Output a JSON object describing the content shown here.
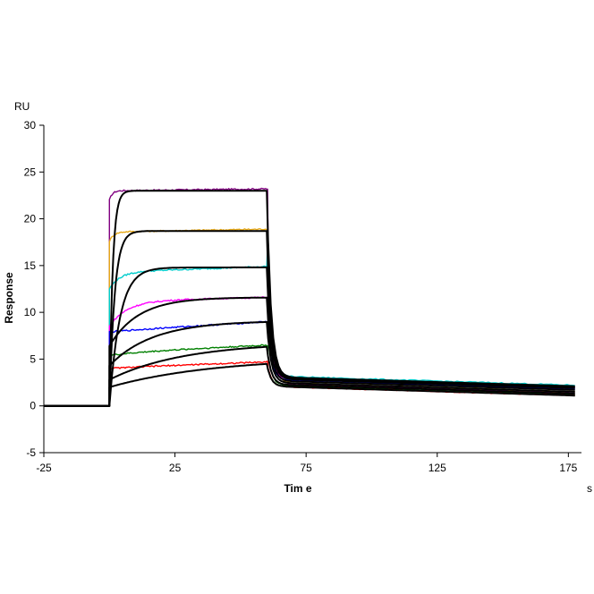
{
  "chart_data": {
    "type": "line",
    "title": "",
    "xlabel": "Tim e",
    "ylabel": "Response",
    "x_unit": "s",
    "y_unit": "RU",
    "xlim": [
      -25,
      180
    ],
    "ylim": [
      -5,
      30
    ],
    "x_ticks": [
      -25,
      25,
      75,
      125,
      175
    ],
    "y_ticks": [
      -5,
      0,
      5,
      10,
      15,
      20,
      25,
      30
    ],
    "x_tick_labels": [
      "-25",
      "25",
      "75",
      "125",
      "175"
    ],
    "y_tick_labels": [
      "-5",
      "0",
      "5",
      "10",
      "15",
      "20",
      "25",
      "30"
    ],
    "association_start": 0,
    "dissociation_start": 60,
    "end_time": 178,
    "grid": false,
    "legend": "none",
    "series": [
      {
        "name": "curve-1",
        "color": "#800080",
        "plateau": 23.2,
        "initial": 22.0,
        "kon": 0.9,
        "drift": 0.2,
        "end": 1.4,
        "spike": 2.0
      },
      {
        "name": "curve-2",
        "color": "#e6a817",
        "plateau": 18.9,
        "initial": 17.6,
        "kon": 0.6,
        "drift": 0.3,
        "end": 1.5,
        "spike": 3.0
      },
      {
        "name": "curve-3",
        "color": "#00cccc",
        "plateau": 14.9,
        "initial": 12.5,
        "kon": 0.25,
        "drift": 0.6,
        "end": 2.2,
        "spike": 17.0
      },
      {
        "name": "curve-4",
        "color": "#ff00ff",
        "plateau": 11.6,
        "initial": 8.5,
        "kon": 0.15,
        "drift": 0.4,
        "end": 1.9,
        "spike": 6.0
      },
      {
        "name": "curve-5",
        "color": "#0000ff",
        "plateau": 9.0,
        "initial": 7.9,
        "kon": 0.08,
        "drift": 1.0,
        "end": 1.8,
        "spike": 4.0
      },
      {
        "name": "curve-6",
        "color": "#008000",
        "plateau": 6.5,
        "initial": 5.4,
        "kon": 0.07,
        "drift": 0.8,
        "end": 1.2,
        "spike": 3.0
      },
      {
        "name": "curve-7",
        "color": "#ff0000",
        "plateau": 4.7,
        "initial": 4.0,
        "kon": 0.06,
        "drift": 0.6,
        "end": 1.1,
        "spike": 2.5
      }
    ],
    "fits": [
      {
        "name": "fit-1",
        "color": "#000000",
        "plateau": 23.0,
        "initial": 0,
        "kon": 0.8,
        "drift": 0,
        "end": 2.1,
        "spike": 0
      },
      {
        "name": "fit-2",
        "color": "#000000",
        "plateau": 18.7,
        "initial": 0,
        "kon": 0.5,
        "drift": 0,
        "end": 2.0,
        "spike": 0
      },
      {
        "name": "fit-3",
        "color": "#000000",
        "plateau": 14.8,
        "initial": 0,
        "kon": 0.25,
        "drift": 0,
        "end": 1.9,
        "spike": 0
      },
      {
        "name": "fit-4",
        "color": "#000000",
        "plateau": 11.6,
        "initial": 6.4,
        "kon": 0.09,
        "drift": 0,
        "end": 1.7,
        "spike": 0
      },
      {
        "name": "fit-5",
        "color": "#000000",
        "plateau": 9.1,
        "initial": 4.3,
        "kon": 0.06,
        "drift": 0,
        "end": 1.5,
        "spike": 0
      },
      {
        "name": "fit-6",
        "color": "#000000",
        "plateau": 6.8,
        "initial": 2.8,
        "kon": 0.035,
        "drift": 0,
        "end": 1.3,
        "spike": 0
      },
      {
        "name": "fit-7",
        "color": "#000000",
        "plateau": 5.2,
        "initial": 2.0,
        "kon": 0.025,
        "drift": 0,
        "end": 1.1,
        "spike": 0
      }
    ]
  }
}
